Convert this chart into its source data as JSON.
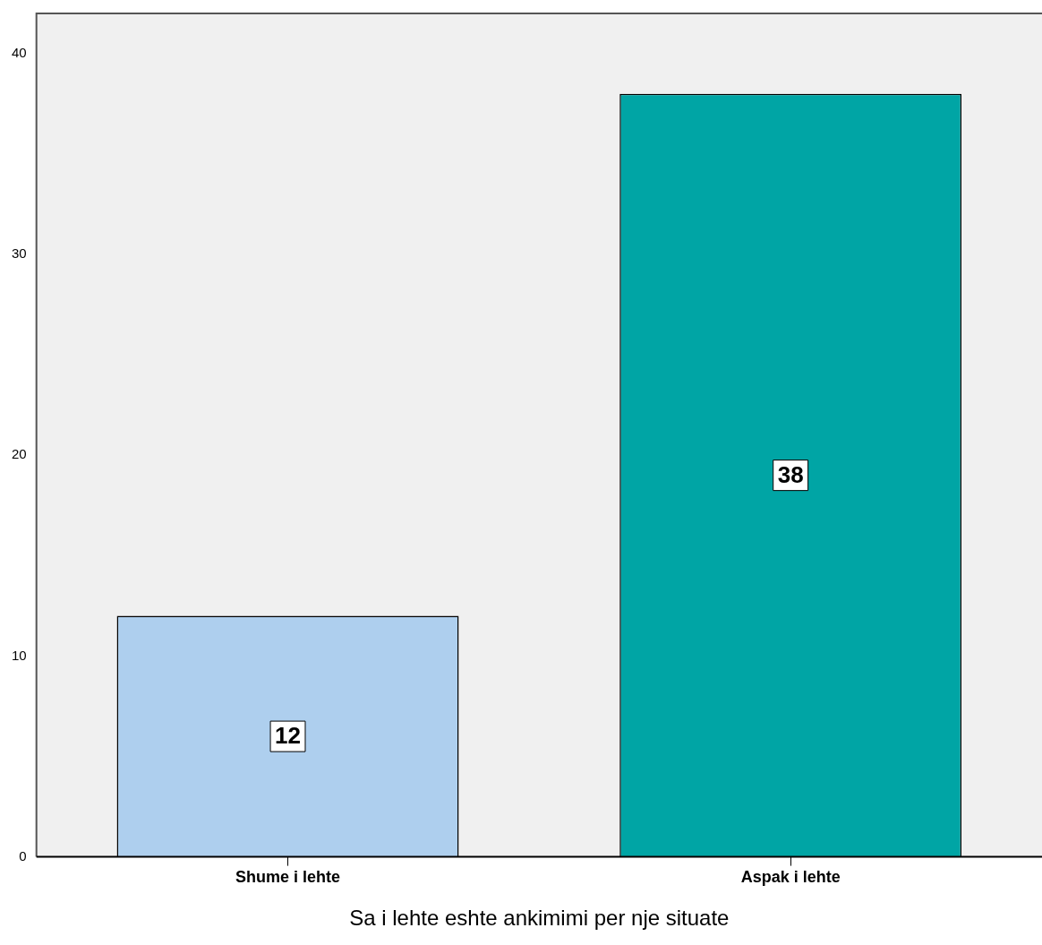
{
  "chart_data": {
    "type": "bar",
    "xlabel": "Sa i lehte eshte ankimimi per nje situate",
    "categories": [
      "Shume i lehte",
      "Aspak i lehte"
    ],
    "values": [
      12,
      38
    ],
    "colors": [
      "#aecfee",
      "#00a5a5"
    ],
    "ylim": [
      0,
      42
    ],
    "yticks": [
      0,
      10,
      20,
      30,
      40
    ],
    "grid": false,
    "legend": false,
    "data_labels": true
  }
}
